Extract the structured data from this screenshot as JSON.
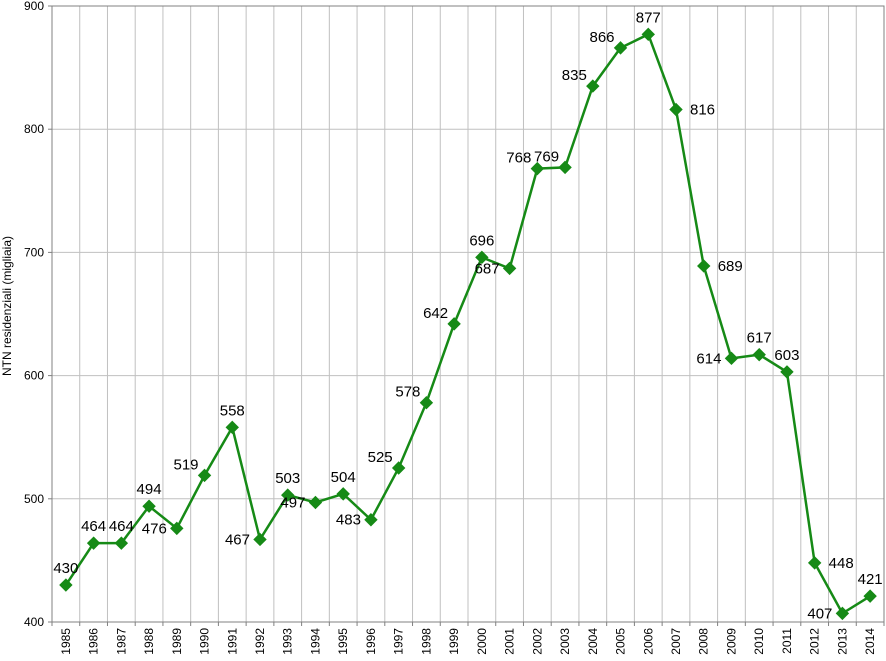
{
  "chart_data": {
    "type": "line",
    "title": "",
    "xlabel": "",
    "ylabel": "NTN residenziali (migliaia)",
    "ylim": [
      400,
      900
    ],
    "yticks": [
      400,
      500,
      600,
      700,
      800,
      900
    ],
    "grid": true,
    "legend": "none",
    "colors": {
      "series": "#168a16",
      "grid": "#c0c0c0",
      "axis": "#808080"
    },
    "categories": [
      "1985",
      "1986",
      "1987",
      "1988",
      "1989",
      "1990",
      "1991",
      "1992",
      "1993",
      "1994",
      "1995",
      "1996",
      "1997",
      "1998",
      "1999",
      "2000",
      "2001",
      "2002",
      "2003",
      "2004",
      "2005",
      "2006",
      "2007",
      "2008",
      "2009",
      "2010",
      "2011",
      "2012",
      "2013",
      "2014"
    ],
    "series": [
      {
        "values": [
          430,
          464,
          464,
          494,
          476,
          519,
          558,
          467,
          503,
          497,
          504,
          483,
          525,
          578,
          642,
          696,
          687,
          768,
          769,
          835,
          866,
          877,
          816,
          689,
          614,
          617,
          603,
          448,
          407,
          421
        ],
        "data_labels": [
          "430",
          "464",
          "464",
          "494",
          "476",
          "519",
          "558",
          "467",
          "503",
          "497",
          "504",
          "483",
          "525",
          "578",
          "642",
          "696",
          "687",
          "768",
          "769",
          "835",
          "866",
          "877",
          "816",
          "689",
          "614",
          "617",
          "603",
          "448",
          "407",
          "421"
        ],
        "marker": "diamond"
      }
    ]
  }
}
